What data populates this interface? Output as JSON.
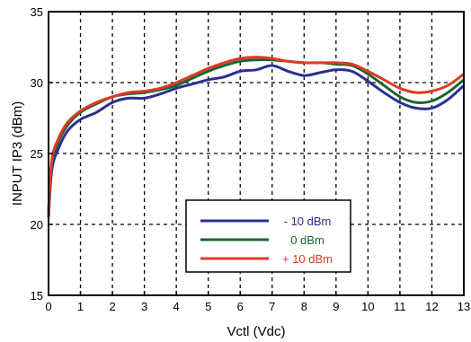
{
  "chart_data": {
    "type": "line",
    "title": "",
    "xlabel": "Vctl (Vdc)",
    "ylabel": "INPUT IP3 (dBm)",
    "xlim": [
      0,
      13
    ],
    "ylim": [
      15,
      35
    ],
    "x_ticks": [
      0,
      1,
      2,
      3,
      4,
      5,
      6,
      7,
      8,
      9,
      10,
      11,
      12,
      13
    ],
    "y_ticks": [
      15,
      20,
      25,
      30,
      35
    ],
    "grid": true,
    "legend_position": "lower-center",
    "series": [
      {
        "name": "- 10 dBm",
        "color": "#2b2f8f",
        "x": [
          0,
          0.1,
          0.3,
          0.6,
          1,
          1.5,
          2,
          2.5,
          3,
          3.5,
          4,
          4.5,
          5,
          5.5,
          6,
          6.5,
          7,
          7.5,
          8,
          8.5,
          9,
          9.5,
          10,
          10.5,
          11,
          11.5,
          12,
          12.5,
          13
        ],
        "values": [
          20.5,
          23.8,
          25.3,
          26.6,
          27.4,
          27.9,
          28.6,
          28.9,
          28.9,
          29.2,
          29.6,
          29.9,
          30.2,
          30.4,
          30.8,
          30.9,
          31.2,
          30.8,
          30.5,
          30.7,
          30.9,
          30.8,
          30.1,
          29.3,
          28.6,
          28.2,
          28.2,
          28.8,
          29.8
        ]
      },
      {
        "name": "0 dBm",
        "color": "#1a6630",
        "x": [
          0,
          0.1,
          0.3,
          0.6,
          1,
          1.5,
          2,
          2.5,
          3,
          3.5,
          4,
          4.5,
          5,
          5.5,
          6,
          6.5,
          7,
          7.5,
          8,
          8.5,
          9,
          9.5,
          10,
          10.5,
          11,
          11.5,
          12,
          12.5,
          13
        ],
        "values": [
          21.0,
          24.2,
          25.8,
          27.0,
          27.9,
          28.5,
          29.0,
          29.2,
          29.3,
          29.5,
          29.8,
          30.3,
          30.8,
          31.2,
          31.5,
          31.6,
          31.6,
          31.5,
          31.4,
          31.4,
          31.3,
          31.2,
          30.6,
          29.8,
          29.0,
          28.6,
          28.7,
          29.3,
          30.2
        ]
      },
      {
        "name": "+ 10 dBm",
        "color": "#e03a26",
        "x": [
          0,
          0.1,
          0.3,
          0.6,
          1,
          1.5,
          2,
          2.5,
          3,
          3.5,
          4,
          4.5,
          5,
          5.5,
          6,
          6.5,
          7,
          7.5,
          8,
          8.5,
          9,
          9.5,
          10,
          10.5,
          11,
          11.5,
          12,
          12.5,
          13
        ],
        "values": [
          20.8,
          24.5,
          26.0,
          27.2,
          28.0,
          28.6,
          29.0,
          29.3,
          29.4,
          29.6,
          30.0,
          30.5,
          31.0,
          31.4,
          31.7,
          31.8,
          31.7,
          31.5,
          31.4,
          31.4,
          31.4,
          31.3,
          30.8,
          30.2,
          29.6,
          29.3,
          29.4,
          29.8,
          30.6
        ]
      }
    ]
  },
  "colors": {
    "background": "#ffffff",
    "frame": "#000000",
    "grid": "#000000",
    "legend_border": "#000000"
  }
}
